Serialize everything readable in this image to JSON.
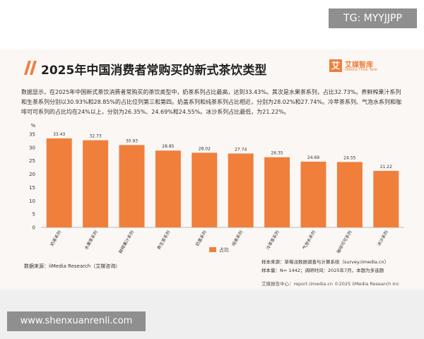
{
  "page": {
    "watermark": "TG: MYYJJPP",
    "logo_mark": "艾",
    "logo_name": "艾媒智库",
    "logo_sub": "iiMedia Think Tank",
    "description": "数据显示，在2025年中国新式茶饮消费者常购买的茶饮类型中，奶茶系列占比最高，达到33.43%。其次是水果茶系列，占比32.73%。养鲜榨果汁系列和生茶系列分别以30.93%和28.85%的占比位列第三和第四。奶盖系列和纯茶系列占比相近，分别为28.02%和27.74%。冷萃茶系列、气泡水系列和咖啡可可系列的占比均在24%以上，分别为26.35%、24.69%和24.55%。冰沙系列占比最低，为21.22%。",
    "source": "数据来源：iiMedia Research（艾媒咨询）",
    "sample_source": "样本来源：草莓派数据调查与计算系统（survey.iimedia.cn）",
    "sample_size": "样本量：N= 1442；调研时间：2025年7月，本题为多选题",
    "footer": "艾媒报告中心：report.iimedia.cn   ©2025 iiMedia Research Inc",
    "website": "www.shenxuanrenli.com"
  },
  "chart_data": {
    "type": "bar",
    "title": "2025年中国消费者常购买的新式茶饮类型",
    "y_axis_label": "%",
    "categories": [
      "奶茶系列",
      "水果茶系列",
      "鲜榨果汁系列",
      "养生茶系列",
      "奶盖系列",
      "纯茶系列",
      "冷萃茶系列",
      "气泡水系列",
      "咖啡可可系列",
      "冰沙系列"
    ],
    "series": [
      {
        "name": "占比",
        "color": "#f07f3c",
        "values": [
          33.43,
          32.73,
          30.93,
          28.85,
          28.02,
          27.74,
          26.35,
          24.69,
          24.55,
          21.22
        ]
      }
    ],
    "ylim": [
      0,
      35
    ],
    "yticks": [
      0,
      5,
      10,
      15,
      20,
      25,
      30,
      35
    ],
    "grid": false
  }
}
